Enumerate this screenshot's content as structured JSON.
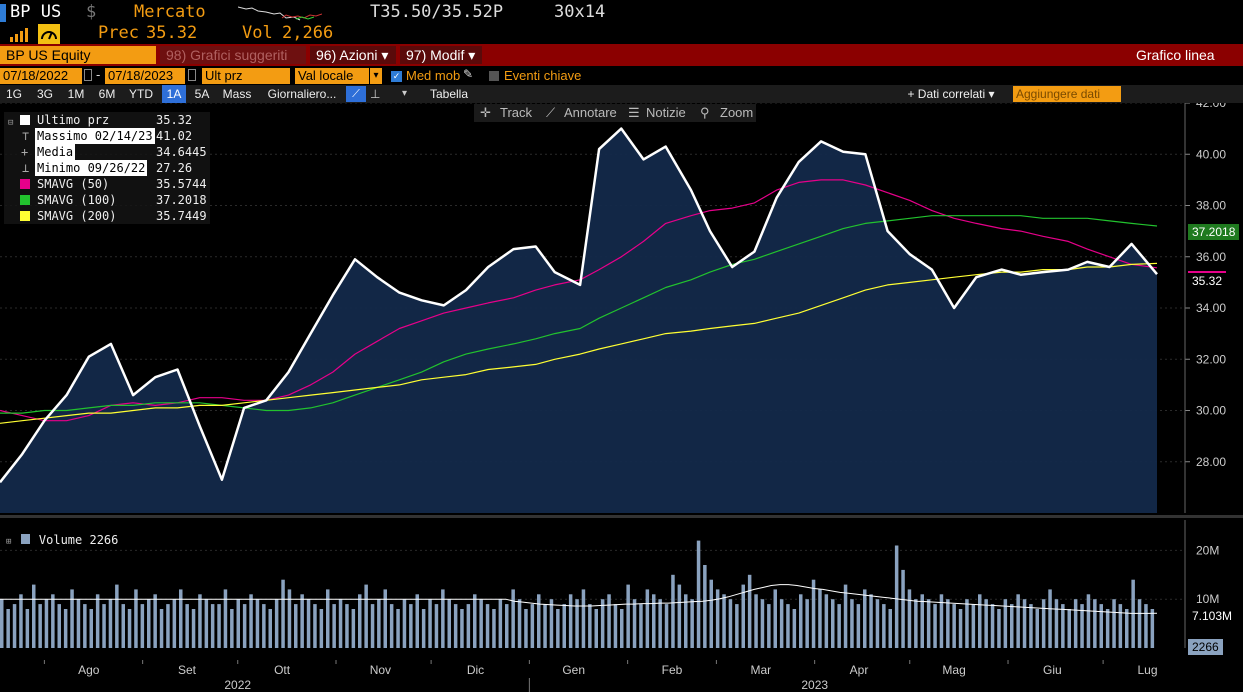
{
  "header": {
    "ticker": "BP US",
    "currency": "$",
    "market_label": "Mercato",
    "quote": "T35.50/35.52P",
    "size": "30x14",
    "prev_label": "Prec",
    "prev_value": "35.32",
    "vol_label": "Vol",
    "vol_value": "2,266"
  },
  "function_bar": {
    "security": "BP US Equity",
    "suggested": "98) Grafici suggeriti",
    "actions": "96) Azioni ▾",
    "modify": "97) Modif ▾",
    "chart_type": "Grafico linea"
  },
  "options_bar": {
    "start_date": "07/18/2022",
    "separator": "-",
    "end_date": "07/18/2023",
    "price_field": "Ult prz",
    "currency_field": "Val locale",
    "moving_avg_label": "Med mob",
    "key_events_label": "Eventi chiave"
  },
  "tabs": [
    {
      "label": "1G"
    },
    {
      "label": "3G"
    },
    {
      "label": "1M"
    },
    {
      "label": "6M"
    },
    {
      "label": "YTD"
    },
    {
      "label": "1A",
      "active": true
    },
    {
      "label": "5A"
    },
    {
      "label": "Mass"
    },
    {
      "label": "Giornaliero..."
    }
  ],
  "table_label": "Tabella",
  "related_data_label": "+ Dati correlati ▾",
  "add_data_placeholder": "Aggiungere dati",
  "hover_tools": {
    "track": "Track",
    "annotate": "Annotare",
    "news": "Notizie",
    "zoom": "Zoom"
  },
  "legend": [
    {
      "label": "Ultimo prz",
      "value": "35.32",
      "color": "#ffffff"
    },
    {
      "label": "Massimo 02/14/23",
      "value": "41.02",
      "color": null
    },
    {
      "label": "Media",
      "value": "34.6445",
      "color": null
    },
    {
      "label": "Minimo 09/26/22",
      "value": "27.26",
      "color": null
    },
    {
      "label": "SMAVG (50)",
      "value": "35.5744",
      "color": "#e6008a"
    },
    {
      "label": "SMAVG (100)",
      "value": "37.2018",
      "color": "#22c22e"
    },
    {
      "label": "SMAVG (200)",
      "value": "35.7449",
      "color": "#ffff33"
    }
  ],
  "axis_tags": {
    "price_last": "35.32",
    "sma100_last": "37.2018",
    "vol_ma_last": "7.103M",
    "vol_last": "2266"
  },
  "volume_legend": "Volume 2266",
  "x_axis": {
    "months": [
      "Ago",
      "Set",
      "Ott",
      "Nov",
      "Dic",
      "Gen",
      "Feb",
      "Mar",
      "Apr",
      "Mag",
      "Giu",
      "Lug"
    ],
    "years": [
      "2022",
      "2023"
    ]
  },
  "chart_data": {
    "type": "line",
    "title": "",
    "xlabel": "",
    "ylabel": "",
    "ylim": [
      26.0,
      42.0
    ],
    "yticks": [
      28,
      30,
      32,
      34,
      36,
      38,
      40,
      42
    ],
    "ytick_labels": [
      "28.00",
      "30.00",
      "32.00",
      "34.00",
      "36.00",
      "38.00",
      "40.00",
      "42.00"
    ],
    "x": [
      "2022-07-18",
      "2022-07-25",
      "2022-08-01",
      "2022-08-08",
      "2022-08-15",
      "2022-08-22",
      "2022-08-29",
      "2022-09-05",
      "2022-09-12",
      "2022-09-19",
      "2022-09-26",
      "2022-10-03",
      "2022-10-10",
      "2022-10-17",
      "2022-10-24",
      "2022-10-31",
      "2022-11-07",
      "2022-11-14",
      "2022-11-21",
      "2022-11-28",
      "2022-12-05",
      "2022-12-12",
      "2022-12-19",
      "2022-12-27",
      "2023-01-03",
      "2023-01-09",
      "2023-01-17",
      "2023-01-23",
      "2023-01-30",
      "2023-02-06",
      "2023-02-13",
      "2023-02-21",
      "2023-02-27",
      "2023-03-06",
      "2023-03-13",
      "2023-03-20",
      "2023-03-27",
      "2023-04-03",
      "2023-04-10",
      "2023-04-17",
      "2023-04-24",
      "2023-05-01",
      "2023-05-08",
      "2023-05-15",
      "2023-05-22",
      "2023-05-30",
      "2023-06-05",
      "2023-06-12",
      "2023-06-20",
      "2023-06-26",
      "2023-07-03",
      "2023-07-10",
      "2023-07-18"
    ],
    "series": [
      {
        "name": "Ultimo prz",
        "color": "#ffffff",
        "values": [
          27.2,
          28.3,
          29.6,
          30.6,
          32.1,
          32.6,
          30.6,
          31.3,
          31.6,
          29.4,
          27.3,
          30.1,
          30.4,
          31.5,
          33.0,
          34.5,
          35.9,
          35.2,
          34.6,
          34.3,
          34.1,
          34.7,
          35.6,
          36.3,
          36.4,
          35.4,
          34.9,
          40.2,
          41.0,
          39.8,
          40.3,
          38.6,
          37.0,
          35.6,
          36.2,
          38.3,
          39.7,
          40.5,
          40.1,
          40.0,
          37.0,
          36.1,
          35.5,
          34.0,
          35.2,
          35.5,
          35.3,
          35.4,
          35.5,
          35.8,
          35.6,
          36.5,
          35.32
        ]
      },
      {
        "name": "SMAVG (50)",
        "color": "#e6008a",
        "values": [
          30.0,
          29.8,
          29.6,
          29.6,
          29.8,
          30.2,
          30.3,
          30.2,
          30.3,
          30.5,
          30.5,
          30.4,
          30.4,
          30.6,
          31.0,
          31.5,
          32.2,
          32.7,
          33.2,
          33.5,
          33.8,
          34.0,
          34.2,
          34.4,
          34.7,
          34.9,
          35.1,
          35.5,
          36.0,
          36.6,
          37.3,
          37.6,
          37.8,
          37.9,
          38.1,
          38.6,
          38.9,
          39.0,
          39.0,
          38.8,
          38.5,
          38.2,
          37.8,
          37.5,
          37.3,
          37.1,
          37.0,
          36.8,
          36.6,
          36.3,
          36.0,
          35.7,
          35.57
        ]
      },
      {
        "name": "SMAVG (100)",
        "color": "#22c22e",
        "values": [
          29.9,
          29.9,
          30.0,
          30.0,
          30.1,
          30.2,
          30.2,
          30.3,
          30.3,
          30.3,
          30.2,
          30.1,
          30.0,
          30.0,
          30.1,
          30.3,
          30.6,
          30.9,
          31.2,
          31.5,
          31.9,
          32.2,
          32.4,
          32.6,
          32.8,
          33.0,
          33.2,
          33.6,
          34.0,
          34.4,
          34.8,
          35.1,
          35.4,
          35.7,
          35.9,
          36.2,
          36.5,
          36.8,
          37.1,
          37.3,
          37.4,
          37.5,
          37.6,
          37.6,
          37.6,
          37.6,
          37.6,
          37.5,
          37.5,
          37.5,
          37.4,
          37.3,
          37.2
        ]
      },
      {
        "name": "SMAVG (200)",
        "color": "#ffff33",
        "values": [
          29.5,
          29.6,
          29.7,
          29.8,
          29.9,
          29.9,
          30.0,
          30.1,
          30.1,
          30.2,
          30.2,
          30.3,
          30.4,
          30.5,
          30.6,
          30.7,
          30.8,
          30.9,
          31.0,
          31.2,
          31.3,
          31.4,
          31.6,
          31.7,
          31.8,
          32.0,
          32.2,
          32.4,
          32.6,
          32.8,
          33.0,
          33.1,
          33.2,
          33.3,
          33.4,
          33.6,
          33.8,
          34.1,
          34.4,
          34.7,
          34.9,
          35.0,
          35.1,
          35.2,
          35.3,
          35.4,
          35.4,
          35.5,
          35.5,
          35.6,
          35.6,
          35.7,
          35.74
        ]
      }
    ],
    "volume": {
      "type": "bar",
      "ylim": [
        0,
        25
      ],
      "yticks": [
        10,
        20
      ],
      "ytick_labels": [
        "10M",
        "20M"
      ],
      "unit": "M",
      "bar_color": "#8aa2bf",
      "values": [
        10,
        8,
        9,
        11,
        8,
        13,
        9,
        10,
        11,
        9,
        8,
        12,
        10,
        9,
        8,
        11,
        9,
        10,
        13,
        9,
        8,
        12,
        9,
        10,
        11,
        8,
        9,
        10,
        12,
        9,
        8,
        11,
        10,
        9,
        9,
        12,
        8,
        10,
        9,
        11,
        10,
        9,
        8,
        10,
        14,
        12,
        9,
        11,
        10,
        9,
        8,
        12,
        9,
        10,
        9,
        8,
        11,
        13,
        9,
        10,
        12,
        9,
        8,
        10,
        9,
        11,
        8,
        10,
        9,
        12,
        10,
        9,
        8,
        9,
        11,
        10,
        9,
        8,
        10,
        9,
        12,
        10,
        8,
        9,
        11,
        9,
        10,
        8,
        9,
        11,
        10,
        12,
        9,
        8,
        10,
        11,
        9,
        8,
        13,
        10,
        9,
        12,
        11,
        10,
        9,
        15,
        13,
        11,
        10,
        22,
        17,
        14,
        12,
        11,
        10,
        9,
        13,
        15,
        11,
        10,
        9,
        12,
        10,
        9,
        8,
        11,
        10,
        14,
        12,
        11,
        10,
        9,
        13,
        10,
        9,
        12,
        11,
        10,
        9,
        8,
        21,
        16,
        12,
        10,
        11,
        10,
        9,
        11,
        10,
        9,
        8,
        10,
        9,
        11,
        10,
        9,
        8,
        10,
        9,
        11,
        10,
        9,
        8,
        10,
        12,
        10,
        9,
        8,
        10,
        9,
        11,
        10,
        9,
        8,
        10,
        9,
        8,
        14,
        10,
        9,
        8
      ],
      "ma_values": [
        10,
        10,
        10,
        10,
        10,
        10,
        10,
        10,
        10,
        10,
        10,
        10,
        10,
        10,
        10,
        10,
        10,
        10,
        10,
        10,
        10,
        10,
        10,
        10,
        10,
        10,
        10,
        10,
        10,
        10,
        10,
        10,
        10,
        10,
        10,
        10,
        10,
        10,
        10,
        10,
        10,
        10,
        10,
        10,
        10,
        10,
        10,
        10,
        10,
        10,
        10,
        10,
        10,
        10,
        10,
        10,
        10,
        10,
        10,
        10,
        9.6,
        9.4,
        9.2,
        9.0,
        8.9,
        8.8,
        8.7,
        8.6,
        8.6,
        8.6,
        8.7,
        8.8,
        8.9,
        9.0,
        9.0,
        9.1,
        9.1,
        9.2,
        9.2,
        9.3,
        9.4,
        9.5,
        9.6,
        9.8,
        10.1,
        10.5,
        11.0,
        11.5,
        12.0,
        12.4,
        12.8,
        13.0,
        13.0,
        12.8,
        12.5,
        12.2,
        12.0,
        11.7,
        11.4,
        11.2,
        11.0,
        10.8,
        10.6,
        10.4,
        10.2,
        10.0,
        9.8,
        9.6,
        9.5,
        9.4,
        9.3,
        9.2,
        9.1,
        9.0,
        8.9,
        8.8,
        8.7,
        8.6,
        8.5,
        8.4,
        8.3,
        8.2,
        8.1,
        8.0,
        7.9,
        7.8,
        7.7,
        7.6,
        7.5,
        7.4,
        7.3,
        7.2,
        7.1,
        7.1,
        7.1,
        7.103
      ]
    }
  }
}
